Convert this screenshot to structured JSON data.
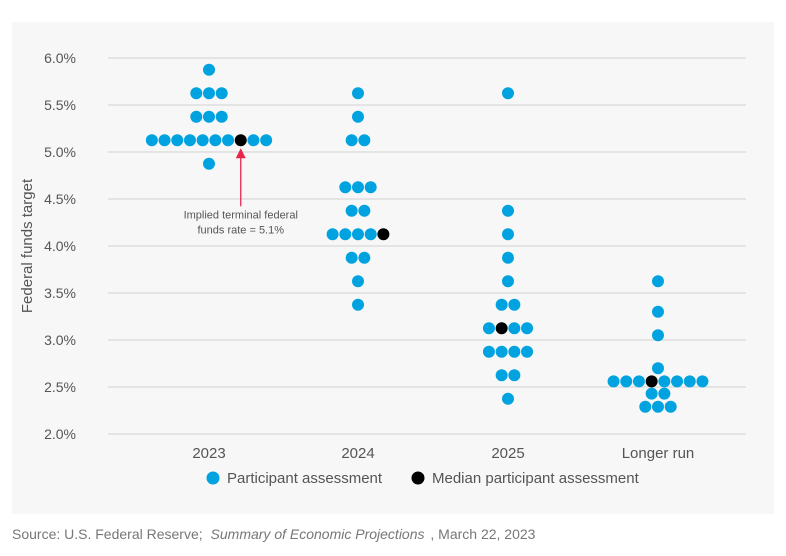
{
  "chart_data": {
    "type": "scatter",
    "subtype": "dot-plot",
    "title": "",
    "xlabel": "",
    "ylabel": "Federal funds target",
    "ylim": [
      2.0,
      6.0
    ],
    "y_ticks": [
      "2.0%",
      "2.5%",
      "3.0%",
      "3.5%",
      "4.0%",
      "4.5%",
      "5.0%",
      "5.5%",
      "6.0%"
    ],
    "grid": true,
    "categories": [
      "2023",
      "2024",
      "2025",
      "Longer run"
    ],
    "series": [
      {
        "name": "Participant assessment",
        "color": "#00a3e0"
      },
      {
        "name": "Median participant assessment",
        "color": "#000000"
      }
    ],
    "dots": [
      {
        "category": "2023",
        "rows": [
          {
            "value": 5.875,
            "count": 1
          },
          {
            "value": 5.625,
            "count": 3
          },
          {
            "value": 5.375,
            "count": 3
          },
          {
            "value": 5.125,
            "count": 10,
            "median_index": 7
          },
          {
            "value": 4.875,
            "count": 1
          }
        ]
      },
      {
        "category": "2024",
        "rows": [
          {
            "value": 5.625,
            "count": 1
          },
          {
            "value": 5.375,
            "count": 1
          },
          {
            "value": 5.125,
            "count": 2
          },
          {
            "value": 4.625,
            "count": 3
          },
          {
            "value": 4.375,
            "count": 2
          },
          {
            "value": 4.125,
            "count": 5,
            "median_index": 4
          },
          {
            "value": 3.875,
            "count": 2
          },
          {
            "value": 3.625,
            "count": 1
          },
          {
            "value": 3.375,
            "count": 1
          }
        ]
      },
      {
        "category": "2025",
        "rows": [
          {
            "value": 5.625,
            "count": 1
          },
          {
            "value": 4.375,
            "count": 1
          },
          {
            "value": 4.125,
            "count": 1
          },
          {
            "value": 3.875,
            "count": 1
          },
          {
            "value": 3.625,
            "count": 1
          },
          {
            "value": 3.375,
            "count": 2
          },
          {
            "value": 3.125,
            "count": 4,
            "median_index": 1
          },
          {
            "value": 2.875,
            "count": 4
          },
          {
            "value": 2.625,
            "count": 2
          },
          {
            "value": 2.375,
            "count": 1
          }
        ]
      },
      {
        "category": "Longer run",
        "rows": [
          {
            "value": 3.625,
            "count": 1
          },
          {
            "value": 3.3,
            "count": 1
          },
          {
            "value": 3.05,
            "count": 1
          },
          {
            "value": 2.7,
            "count": 1
          },
          {
            "value": 2.56,
            "count": 8,
            "median_index": 3
          },
          {
            "value": 2.43,
            "count": 2
          },
          {
            "value": 2.29,
            "count": 3
          }
        ]
      }
    ],
    "annotation": {
      "line1": "Implied terminal federal",
      "line2": "funds rate = 5.1%",
      "points_to": {
        "category": "2023",
        "value": 5.125
      },
      "arrow_color": "#e8264c"
    },
    "legend_position": "bottom"
  },
  "source": {
    "prefix": "Source: U.S. Federal Reserve; ",
    "publication": "Summary of Economic Projections",
    "suffix": " , March 22, 2023"
  }
}
